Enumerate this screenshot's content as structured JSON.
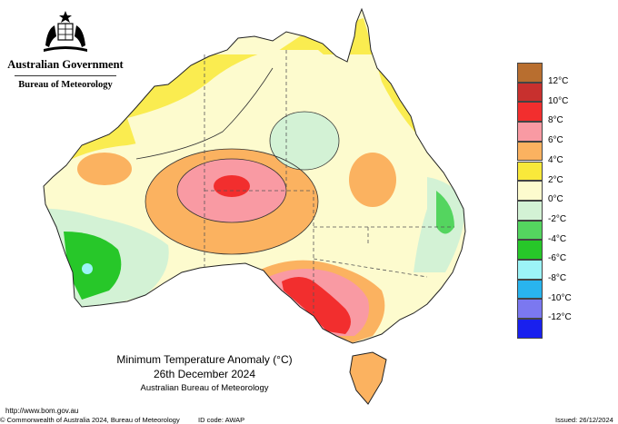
{
  "agency": {
    "government": "Australian Government",
    "bureau": "Bureau of Meteorology",
    "logo_icon": "commonwealth-coat-of-arms-icon"
  },
  "map": {
    "title": "Minimum Temperature Anomaly (°C)",
    "date": "26th December 2024",
    "source": "Australian Bureau of Meteorology",
    "variable": "minimum temperature anomaly",
    "region": "Australia"
  },
  "legend": {
    "ticks": [
      "12°C",
      "10°C",
      "8°C",
      "6°C",
      "4°C",
      "2°C",
      "0°C",
      "-2°C",
      "-4°C",
      "-6°C",
      "-8°C",
      "-10°C",
      "-12°C"
    ],
    "colors": [
      "#b86e2f",
      "#c8302e",
      "#f22e2e",
      "#f99aa3",
      "#fbb260",
      "#f9e93a",
      "#fdfbce",
      "#d3f2d5",
      "#54d55f",
      "#27c729",
      "#9cf4f7",
      "#29b4ee",
      "#7b78f0",
      "#1920ee"
    ]
  },
  "footer": {
    "url": "http://www.bom.gov.au",
    "copyright": "© Commonwealth of Australia 2024, Bureau of Meteorology",
    "id_code": "ID code: AWAP",
    "issued": "Issued: 26/12/2024"
  }
}
